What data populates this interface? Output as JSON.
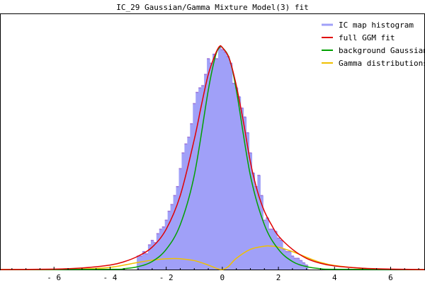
{
  "chart_data": {
    "type": "area",
    "title": "IC_29 Gaussian/Gamma Mixture Model(3) fit",
    "xlabel": "",
    "ylabel": "",
    "xlim": [
      -7.9,
      7.2
    ],
    "ylim": [
      0,
      1.0
    ],
    "xticks": [
      -6,
      -4,
      -2,
      0,
      2,
      4,
      6
    ],
    "xtick_labels": [
      "- 6",
      "- 4",
      "- 2",
      "0",
      "2",
      "4",
      "6"
    ],
    "grid": false,
    "legend_position": "top-right",
    "colors": {
      "histogram": "#a0a0f8",
      "histogram_edge": "#9f76d8",
      "full_fit": "#e00000",
      "background": "#00a000",
      "gamma": "#f0c000"
    },
    "series": [
      {
        "name": "IC map histogram",
        "kind": "histogram",
        "bin_width": 0.1,
        "x": [
          -3.0,
          -2.9,
          -2.8,
          -2.7,
          -2.6,
          -2.5,
          -2.4,
          -2.3,
          -2.2,
          -2.1,
          -2.0,
          -1.9,
          -1.8,
          -1.7,
          -1.6,
          -1.5,
          -1.4,
          -1.3,
          -1.2,
          -1.1,
          -1.0,
          -0.9,
          -0.8,
          -0.7,
          -0.6,
          -0.5,
          -0.4,
          -0.3,
          -0.2,
          -0.1,
          0.0,
          0.1,
          0.2,
          0.3,
          0.4,
          0.5,
          0.6,
          0.7,
          0.8,
          0.9,
          1.0,
          1.1,
          1.2,
          1.3,
          1.4,
          1.5,
          1.6,
          1.7,
          1.8,
          1.9,
          2.0,
          2.1,
          2.2,
          2.3,
          2.4,
          2.5,
          2.6,
          2.7,
          2.8,
          2.9,
          3.0
        ],
        "values": [
          0.06,
          0.06,
          0.08,
          0.07,
          0.11,
          0.13,
          0.12,
          0.16,
          0.18,
          0.19,
          0.22,
          0.26,
          0.29,
          0.33,
          0.37,
          0.45,
          0.52,
          0.56,
          0.59,
          0.65,
          0.74,
          0.79,
          0.81,
          0.82,
          0.87,
          0.94,
          0.92,
          0.96,
          0.94,
          0.99,
          0.98,
          0.97,
          0.95,
          0.92,
          0.83,
          0.81,
          0.77,
          0.72,
          0.68,
          0.61,
          0.52,
          0.43,
          0.37,
          0.42,
          0.33,
          0.22,
          0.23,
          0.18,
          0.18,
          0.17,
          0.14,
          0.13,
          0.09,
          0.08,
          0.08,
          0.06,
          0.05,
          0.05,
          0.04,
          0.03,
          0.02
        ]
      },
      {
        "name": "full GGM fit",
        "kind": "line",
        "x": [
          -7.9,
          -6.0,
          -5.0,
          -4.0,
          -3.5,
          -3.0,
          -2.5,
          -2.0,
          -1.5,
          -1.0,
          -0.75,
          -0.5,
          -0.25,
          -0.1,
          0.0,
          0.25,
          0.5,
          0.75,
          1.0,
          1.25,
          1.5,
          1.75,
          2.0,
          2.5,
          3.0,
          3.5,
          4.0,
          5.0,
          6.0,
          7.2
        ],
        "values": [
          0.0,
          0.002,
          0.007,
          0.02,
          0.035,
          0.06,
          0.1,
          0.18,
          0.33,
          0.58,
          0.73,
          0.87,
          0.96,
          0.995,
          0.99,
          0.94,
          0.82,
          0.66,
          0.48,
          0.35,
          0.26,
          0.2,
          0.15,
          0.09,
          0.05,
          0.028,
          0.016,
          0.006,
          0.002,
          0.0
        ]
      },
      {
        "name": "background Gaussian",
        "kind": "line",
        "x": [
          -7.9,
          -4.0,
          -3.5,
          -3.0,
          -2.5,
          -2.0,
          -1.5,
          -1.0,
          -0.5,
          -0.25,
          -0.1,
          0.0,
          0.25,
          0.5,
          1.0,
          1.5,
          2.0,
          2.5,
          3.0,
          3.5,
          4.0,
          7.2
        ],
        "values": [
          0.0,
          0.001,
          0.004,
          0.013,
          0.036,
          0.09,
          0.2,
          0.42,
          0.8,
          0.95,
          0.99,
          0.99,
          0.94,
          0.8,
          0.42,
          0.2,
          0.09,
          0.036,
          0.013,
          0.004,
          0.001,
          0.0
        ]
      },
      {
        "name": "Gamma distributions",
        "kind": "line",
        "x": [
          -7.9,
          -6.0,
          -5.0,
          -4.5,
          -4.0,
          -3.5,
          -3.0,
          -2.5,
          -2.0,
          -1.7,
          -1.5,
          -1.0,
          -0.5,
          -0.2,
          0.0,
          0.2,
          0.5,
          1.0,
          1.5,
          1.7,
          2.0,
          2.5,
          3.0,
          3.5,
          4.0,
          5.0,
          6.0,
          7.2
        ],
        "values": [
          0.0,
          0.0,
          0.002,
          0.005,
          0.01,
          0.02,
          0.032,
          0.042,
          0.048,
          0.049,
          0.048,
          0.04,
          0.02,
          0.005,
          0.0,
          0.012,
          0.05,
          0.09,
          0.104,
          0.105,
          0.1,
          0.08,
          0.055,
          0.032,
          0.018,
          0.005,
          0.001,
          0.0
        ]
      }
    ]
  }
}
